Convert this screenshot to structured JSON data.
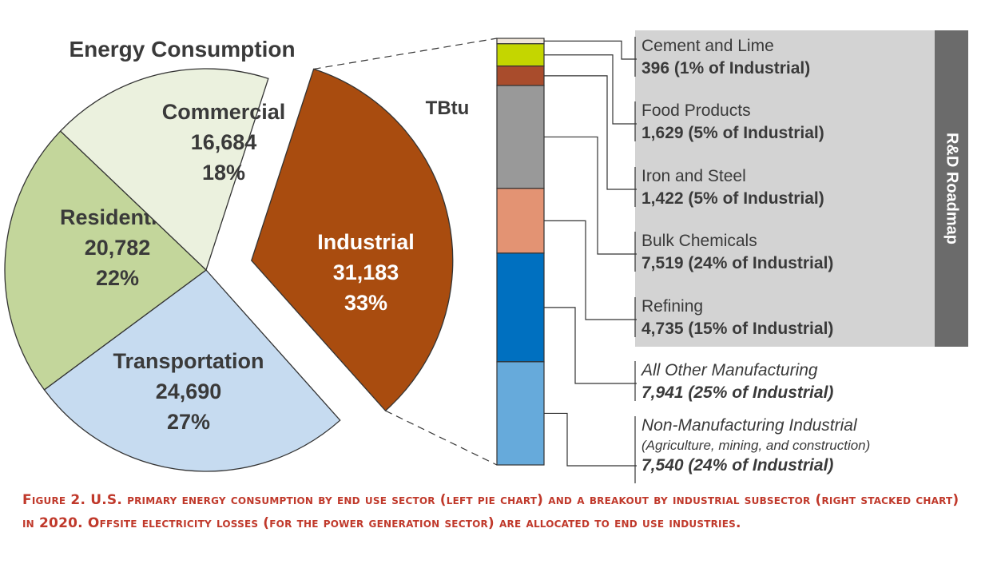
{
  "chart_data": [
    {
      "type": "pie",
      "title": "Energy Consumption",
      "slices": [
        {
          "label": "Industrial",
          "value": 31183,
          "percent": "33%",
          "value_label": "31,183",
          "color": "#a94c0f",
          "text_color": "#ffffff",
          "exploded": true
        },
        {
          "label": "Transportation",
          "value": 24690,
          "percent": "27%",
          "value_label": "24,690",
          "color": "#c6dbf0",
          "text_color": "#3a3a3a"
        },
        {
          "label": "Residential",
          "value": 20782,
          "percent": "22%",
          "value_label": "20,782",
          "color": "#c3d69b",
          "text_color": "#3a3a3a"
        },
        {
          "label": "Commercial",
          "value": 16684,
          "percent": "18%",
          "value_label": "16,684",
          "color": "#ebf1de",
          "text_color": "#3a3a3a"
        }
      ]
    },
    {
      "type": "bar",
      "stacked": true,
      "unit_label": "TBtu",
      "segments": [
        {
          "name": "Cement and Lime",
          "value": 396,
          "detail": "396 (1% of Industrial)",
          "color": "#efe5d8",
          "italic": false
        },
        {
          "name": "Food Products",
          "value": 1629,
          "detail": "1,629 (5% of Industrial)",
          "color": "#c4d600",
          "italic": false
        },
        {
          "name": "Iron and Steel",
          "value": 1422,
          "detail": "1,422 (5% of Industrial)",
          "color": "#a94c2c",
          "italic": false
        },
        {
          "name": "Bulk Chemicals",
          "value": 7519,
          "detail": "7,519 (24% of Industrial)",
          "color": "#999999",
          "italic": false
        },
        {
          "name": "Refining",
          "value": 4735,
          "detail": "4,735 (15% of Industrial)",
          "color": "#e39373",
          "italic": false
        },
        {
          "name": "All Other Manufacturing",
          "value": 7941,
          "detail": "7,941 (25% of Industrial)",
          "color": "#0070c0",
          "italic": true
        },
        {
          "name": "Non-Manufacturing Industrial",
          "sub": "(Agriculture, mining, and construction)",
          "value": 7540,
          "detail": "7,540 (24% of Industrial)",
          "color": "#66aadb",
          "italic": true
        }
      ],
      "roadmap_label": "R&D Roadmap"
    }
  ],
  "caption": "Figure 2. U.S. primary energy consumption by end use sector (left pie chart) and a breakout by industrial subsector (right stacked chart) in 2020. Offsite electricity losses (for the power generation sector) are allocated to end use industries.",
  "colors": {
    "roadmap_box": "#d3d3d3",
    "roadmap_bar": "#6b6b6b",
    "caption": "#c0392b",
    "text": "#3a3a3a"
  }
}
